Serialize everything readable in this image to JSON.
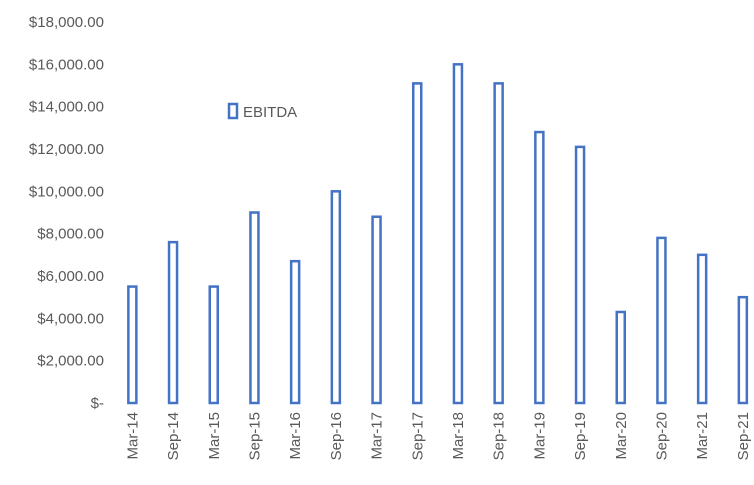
{
  "chart_data": {
    "type": "bar",
    "categories": [
      "Mar-14",
      "Sep-14",
      "Mar-15",
      "Sep-15",
      "Mar-16",
      "Sep-16",
      "Mar-17",
      "Sep-17",
      "Mar-18",
      "Sep-18",
      "Mar-19",
      "Sep-19",
      "Mar-20",
      "Sep-20",
      "Mar-21",
      "Sep-21"
    ],
    "series": [
      {
        "name": "EBITDA",
        "values": [
          5500,
          7600,
          5500,
          9000,
          6700,
          10000,
          8800,
          15100,
          16000,
          15100,
          12800,
          12100,
          4300,
          7800,
          7000,
          5000
        ],
        "color": "#4472C4"
      }
    ],
    "ylim": [
      0,
      18000
    ],
    "y_ticks": [
      {
        "value": 0,
        "label": "$-"
      },
      {
        "value": 2000,
        "label": "$2,000.00"
      },
      {
        "value": 4000,
        "label": "$4,000.00"
      },
      {
        "value": 6000,
        "label": "$6,000.00"
      },
      {
        "value": 8000,
        "label": "$8,000.00"
      },
      {
        "value": 10000,
        "label": "$10,000.00"
      },
      {
        "value": 12000,
        "label": "$12,000.00"
      },
      {
        "value": 14000,
        "label": "$14,000.00"
      },
      {
        "value": 16000,
        "label": "$16,000.00"
      },
      {
        "value": 18000,
        "label": "$18,000.00"
      }
    ],
    "grid": false,
    "legend_position": "upper-left-inside",
    "bar_style": "outlined-hollow"
  }
}
